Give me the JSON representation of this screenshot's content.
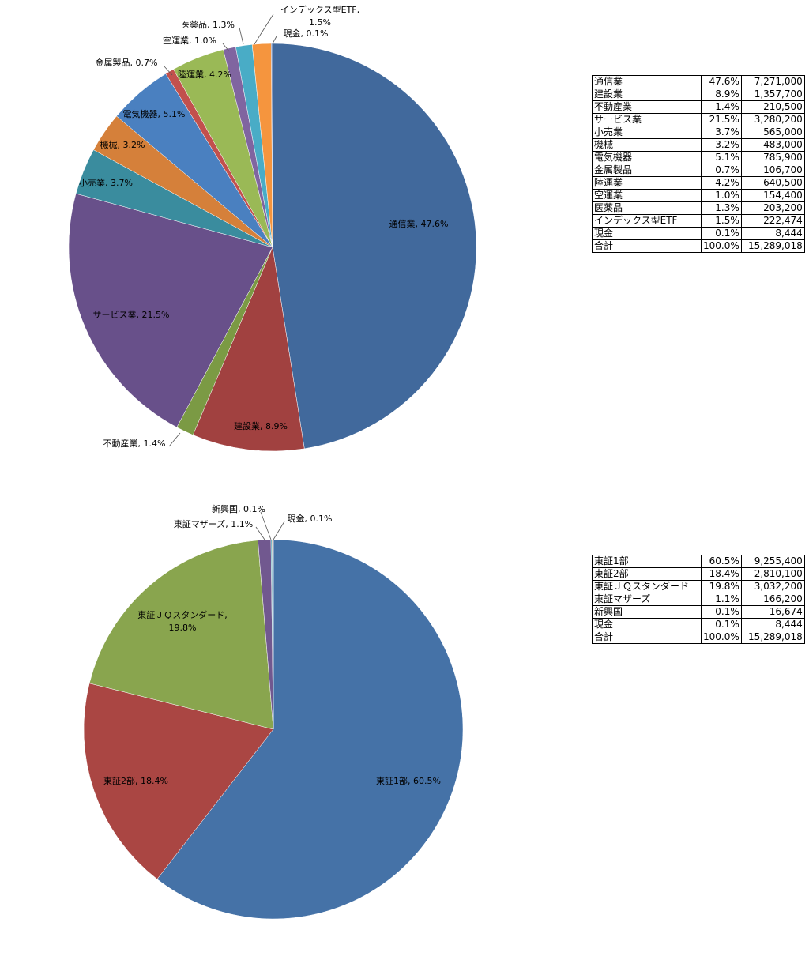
{
  "chart_data": [
    {
      "type": "pie",
      "title": "",
      "colors": [
        "#41699c",
        "#a14140",
        "#7b9a44",
        "#68508a",
        "#3a8c9e",
        "#d5803a",
        "#4a80c0",
        "#c2504d",
        "#9ab956",
        "#8065a0",
        "#49acc6",
        "#f5953e",
        "#5574a8"
      ],
      "slices": [
        {
          "name": "通信業",
          "value": 47.6,
          "label": "通信業, 47.6%"
        },
        {
          "name": "建設業",
          "value": 8.9,
          "label": "建設業, 8.9%"
        },
        {
          "name": "不動産業",
          "value": 1.4,
          "label": "不動産業, 1.4%"
        },
        {
          "name": "サービス業",
          "value": 21.5,
          "label": "サービス業, 21.5%"
        },
        {
          "name": "小売業",
          "value": 3.7,
          "label": "小売業, 3.7%"
        },
        {
          "name": "機械",
          "value": 3.2,
          "label": "機械, 3.2%"
        },
        {
          "name": "電気機器",
          "value": 5.1,
          "label": "電気機器, 5.1%"
        },
        {
          "name": "金属製品",
          "value": 0.7,
          "label": "金属製品, 0.7%"
        },
        {
          "name": "陸運業",
          "value": 4.2,
          "label": "陸運業, 4.2%"
        },
        {
          "name": "空運業",
          "value": 1.0,
          "label": "空運業, 1.0%"
        },
        {
          "name": "医薬品",
          "value": 1.3,
          "label": "医薬品, 1.3%"
        },
        {
          "name": "インデックス型ETF",
          "value": 1.5,
          "label": "インデックス型ETF, 1.5%"
        },
        {
          "name": "現金",
          "value": 0.1,
          "label": "現金, 0.1%"
        }
      ]
    },
    {
      "type": "pie",
      "title": "",
      "colors": [
        "#4572a7",
        "#aa4643",
        "#89a54e",
        "#71588f",
        "#4198af",
        "#db843d"
      ],
      "slices": [
        {
          "name": "東証1部",
          "value": 60.5,
          "label": "東証1部, 60.5%"
        },
        {
          "name": "東証2部",
          "value": 18.4,
          "label": "東証2部, 18.4%"
        },
        {
          "name": "東証ＪＱスタンダード",
          "value": 19.8,
          "label": "東証ＪＱスタンダード, 19.8%"
        },
        {
          "name": "東証マザーズ",
          "value": 1.1,
          "label": "東証マザーズ, 1.1%"
        },
        {
          "name": "新興国",
          "value": 0.1,
          "label": "新興国, 0.1%"
        },
        {
          "name": "現金",
          "value": 0.1,
          "label": "現金, 0.1%"
        }
      ]
    }
  ],
  "table1": {
    "rows": [
      [
        "通信業",
        "47.6%",
        "7,271,000"
      ],
      [
        "建設業",
        "8.9%",
        "1,357,700"
      ],
      [
        "不動産業",
        "1.4%",
        "210,500"
      ],
      [
        "サービス業",
        "21.5%",
        "3,280,200"
      ],
      [
        "小売業",
        "3.7%",
        "565,000"
      ],
      [
        "機械",
        "3.2%",
        "483,000"
      ],
      [
        "電気機器",
        "5.1%",
        "785,900"
      ],
      [
        "金属製品",
        "0.7%",
        "106,700"
      ],
      [
        "陸運業",
        "4.2%",
        "640,500"
      ],
      [
        "空運業",
        "1.0%",
        "154,400"
      ],
      [
        "医薬品",
        "1.3%",
        "203,200"
      ],
      [
        "インデックス型ETF",
        "1.5%",
        "222,474"
      ],
      [
        "現金",
        "0.1%",
        "8,444"
      ],
      [
        "合計",
        "100.0%",
        "15,289,018"
      ]
    ]
  },
  "table2": {
    "rows": [
      [
        "東証1部",
        "60.5%",
        "9,255,400"
      ],
      [
        "東証2部",
        "18.4%",
        "2,810,100"
      ],
      [
        "東証ＪＱスタンダード",
        "19.8%",
        "3,032,200"
      ],
      [
        "東証マザーズ",
        "1.1%",
        "166,200"
      ],
      [
        "新興国",
        "0.1%",
        "16,674"
      ],
      [
        "現金",
        "0.1%",
        "8,444"
      ],
      [
        "合計",
        "100.0%",
        "15,289,018"
      ]
    ]
  }
}
